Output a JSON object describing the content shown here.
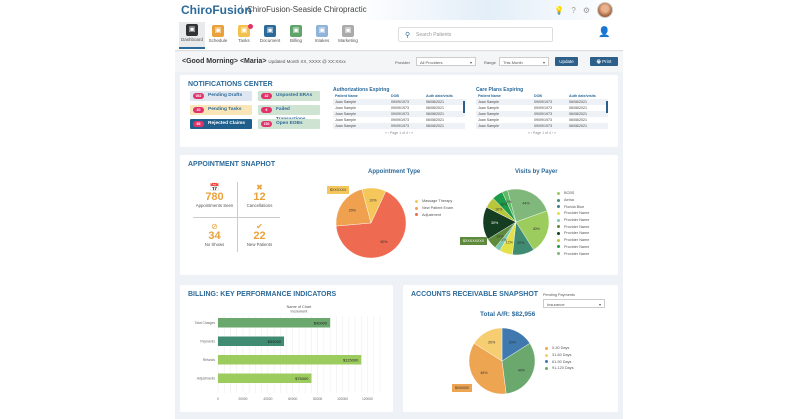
{
  "header": {
    "logo": "ChiroFusion",
    "clinic": "ChiroFusion-Seaside Chiropractic",
    "icons": [
      "lightbulb-icon",
      "help-icon",
      "gear-icon"
    ]
  },
  "nav": [
    {
      "label": "Dashboard",
      "icon": "monitor-icon",
      "color": "#333333"
    },
    {
      "label": "Schedule",
      "icon": "calendar-icon",
      "color": "#e9a23b"
    },
    {
      "label": "Tasks",
      "icon": "tasks-icon",
      "color": "#f2c14e"
    },
    {
      "label": "Document",
      "icon": "document-icon",
      "color": "#2c6a9a"
    },
    {
      "label": "Billing",
      "icon": "billing-icon",
      "color": "#5fa46a"
    },
    {
      "label": "Intakes",
      "icon": "intakes-icon",
      "color": "#8fb3d9"
    },
    {
      "label": "Marketing",
      "icon": "marketing-icon",
      "color": "#aaaaaa"
    }
  ],
  "search": {
    "placeholder": "Search Patients"
  },
  "greeting": {
    "text": "<Good Morning> <Maria>",
    "updated": "Updated Month XX, XXXX @ XX:XXxx"
  },
  "filters": {
    "provider_label": "Provider",
    "provider_value": "All Providers",
    "range_label": "Range",
    "range_value": "This Month",
    "update": "Update",
    "print": "Print"
  },
  "notifications": {
    "title": "NOTIFICATIONS CENTER",
    "items": [
      {
        "count": "052",
        "label": "Pending Drafts",
        "bg": "#dfe6ef"
      },
      {
        "count": "32",
        "label": "Unposted ERAs",
        "bg": "#cfe3d3"
      },
      {
        "count": "20",
        "label": "Pending Tasks",
        "bg": "#f8e6b8"
      },
      {
        "count": "6",
        "label": "Failed Transactions",
        "bg": "#cfe3d3"
      },
      {
        "count": "85",
        "label": "Rejected Claims",
        "bg": "#1f5f8b"
      },
      {
        "count": "150",
        "label": "Open EOBs",
        "bg": "#cfe3d3"
      }
    ]
  },
  "auth_table": {
    "title": "Authorizations Expiring",
    "headers": [
      "Patient Name",
      "DOB",
      "Auth date/visits"
    ],
    "rows": [
      [
        "Joan Sample",
        "09/09/1973",
        "06/08/2021"
      ],
      [
        "Joan Sample",
        "09/09/1973",
        "06/08/2021"
      ],
      [
        "Joan Sample",
        "09/09/1973",
        "06/08/2021"
      ],
      [
        "Joan Sample",
        "09/09/1973",
        "06/08/2021"
      ],
      [
        "Joan Sample",
        "09/09/1973",
        "06/08/2021"
      ]
    ],
    "pager": "«  ‹  Page  1   of 4  ›  »"
  },
  "care_table": {
    "title": "Care Plans Expiring",
    "headers": [
      "Patient Name",
      "DOB",
      "Auth date/visits"
    ],
    "rows": [
      [
        "Joan Sample",
        "09/09/1973",
        "06/08/2021"
      ],
      [
        "Joan Sample",
        "09/09/1973",
        "06/08/2021"
      ],
      [
        "Joan Sample",
        "09/09/1973",
        "06/08/2021"
      ],
      [
        "Joan Sample",
        "09/09/1973",
        "06/08/2021"
      ],
      [
        "Joan Sample",
        "09/09/1973",
        "06/08/2021"
      ]
    ],
    "pager": "«  ‹  Page  1   of 4  ›  »"
  },
  "appointments": {
    "title": "APPOINTMENT SNAPHOT",
    "stats": [
      {
        "value": "780",
        "label": "Appointments Seen",
        "icon": "calendar-icon"
      },
      {
        "value": "12",
        "label": "Cancellations",
        "icon": "x-circle-icon"
      },
      {
        "value": "34",
        "label": "No Shows",
        "icon": "no-entry-icon"
      },
      {
        "value": "22",
        "label": "New Patients",
        "icon": "check-circle-icon"
      }
    ]
  },
  "chart_data": [
    {
      "type": "pie",
      "title": "Appointment Type",
      "tag": "$XXXXXX",
      "slices": [
        {
          "name": "Adjustment",
          "value": 60,
          "label": "60%",
          "color": "#ee6a50"
        },
        {
          "name": "New Patient Exam",
          "value": 20,
          "label": "20%",
          "color": "#f0a150"
        },
        {
          "name": "Massage Therapy",
          "value": 10,
          "label": "10%",
          "color": "#f5c75a"
        }
      ],
      "legend_order": [
        "Massage Therapy",
        "New Patient Exam",
        "Adjustment"
      ],
      "legend": "right"
    },
    {
      "type": "pie",
      "title": "Visits by Payer",
      "tag": "$XXXXXXXX",
      "slices": [
        {
          "name": "BCBS",
          "value": 44,
          "label": "44%",
          "color": "#7fb87a"
        },
        {
          "name": "Provider Name",
          "value": 40,
          "label": "40%",
          "color": "#9ccc5e"
        },
        {
          "name": "Aetna",
          "value": 20,
          "label": "20%",
          "color": "#3f8c72"
        },
        {
          "name": "Provider Name",
          "value": 12,
          "label": "12%",
          "color": "#e3e04a"
        },
        {
          "name": "Florida Blue",
          "value": 5,
          "label": "5%",
          "color": "#7cc7b0"
        },
        {
          "name": "Provider Name",
          "value": 10,
          "label": "10%",
          "color": "#5e8a3c"
        },
        {
          "name": "Provider Name",
          "value": 30,
          "label": "30%",
          "color": "#143d22"
        },
        {
          "name": "Provider Name",
          "value": 10,
          "label": "10%",
          "color": "#b9c53a"
        },
        {
          "name": "Provider Name",
          "value": 10,
          "label": "10%",
          "color": "#1d9a4a"
        },
        {
          "name": "Provider Name",
          "value": 5,
          "label": "5%",
          "color": "#5dbb63"
        }
      ],
      "legend_items": [
        {
          "name": "BCBS",
          "color": "#9ccc5e"
        },
        {
          "name": "Aetna",
          "color": "#3f8c72"
        },
        {
          "name": "Florida Blue",
          "color": "#3f7f86"
        },
        {
          "name": "Provider Name",
          "color": "#e3e04a"
        },
        {
          "name": "Provider Name",
          "color": "#7cc7b0"
        },
        {
          "name": "Provider Name",
          "color": "#5e8a3c"
        },
        {
          "name": "Provider Name",
          "color": "#143d22"
        },
        {
          "name": "Provider Name",
          "color": "#b9c53a"
        },
        {
          "name": "Provider Name",
          "color": "#1d9a4a"
        },
        {
          "name": "Provider Name",
          "color": "#7fb87a"
        }
      ],
      "legend": "right"
    },
    {
      "type": "bar",
      "orientation": "horizontal",
      "title": "Name of Chart",
      "subtitle": "Increment",
      "categories": [
        "Total Charges",
        "Payments",
        "Refunds",
        "Adjustments"
      ],
      "values": [
        90000,
        53000,
        115000,
        75000
      ],
      "labels": [
        "$90000",
        "$53000",
        "$115000",
        "$75000"
      ],
      "colors": [
        "#6aa86e",
        "#3f8c72",
        "#9ccc5e",
        "#9ccc5e"
      ],
      "xlim": [
        0,
        130000
      ],
      "xticks": [
        0,
        20000,
        40000,
        60000,
        80000,
        100000,
        120000
      ],
      "grid": true
    },
    {
      "type": "pie",
      "title": "Total A/R: $82,956",
      "tag": "$000000",
      "slices": [
        {
          "name": "61-90 Days",
          "value": 20,
          "label": "20%",
          "color": "#3f79ad"
        },
        {
          "name": "91-120 Days",
          "value": 40,
          "label": "40%",
          "color": "#6aa86e"
        },
        {
          "name": "0-30 Days",
          "value": 45,
          "label": "45%",
          "color": "#eea552"
        },
        {
          "name": "31-60 Days",
          "value": 20,
          "label": "20%",
          "color": "#f7cd72"
        }
      ],
      "legend_order": [
        "0-30 Days",
        "31-60 Days",
        "61-90 Days",
        "91-120 Days"
      ],
      "legend": "right"
    }
  ],
  "billing": {
    "title": "BILLING: KEY PERFORMANCE INDICATORS"
  },
  "ar": {
    "title": "ACCOUNTS RECEIVABLE SNAPSHOT",
    "pending_label": "Pending Payments",
    "pending_value": "Insurance"
  }
}
